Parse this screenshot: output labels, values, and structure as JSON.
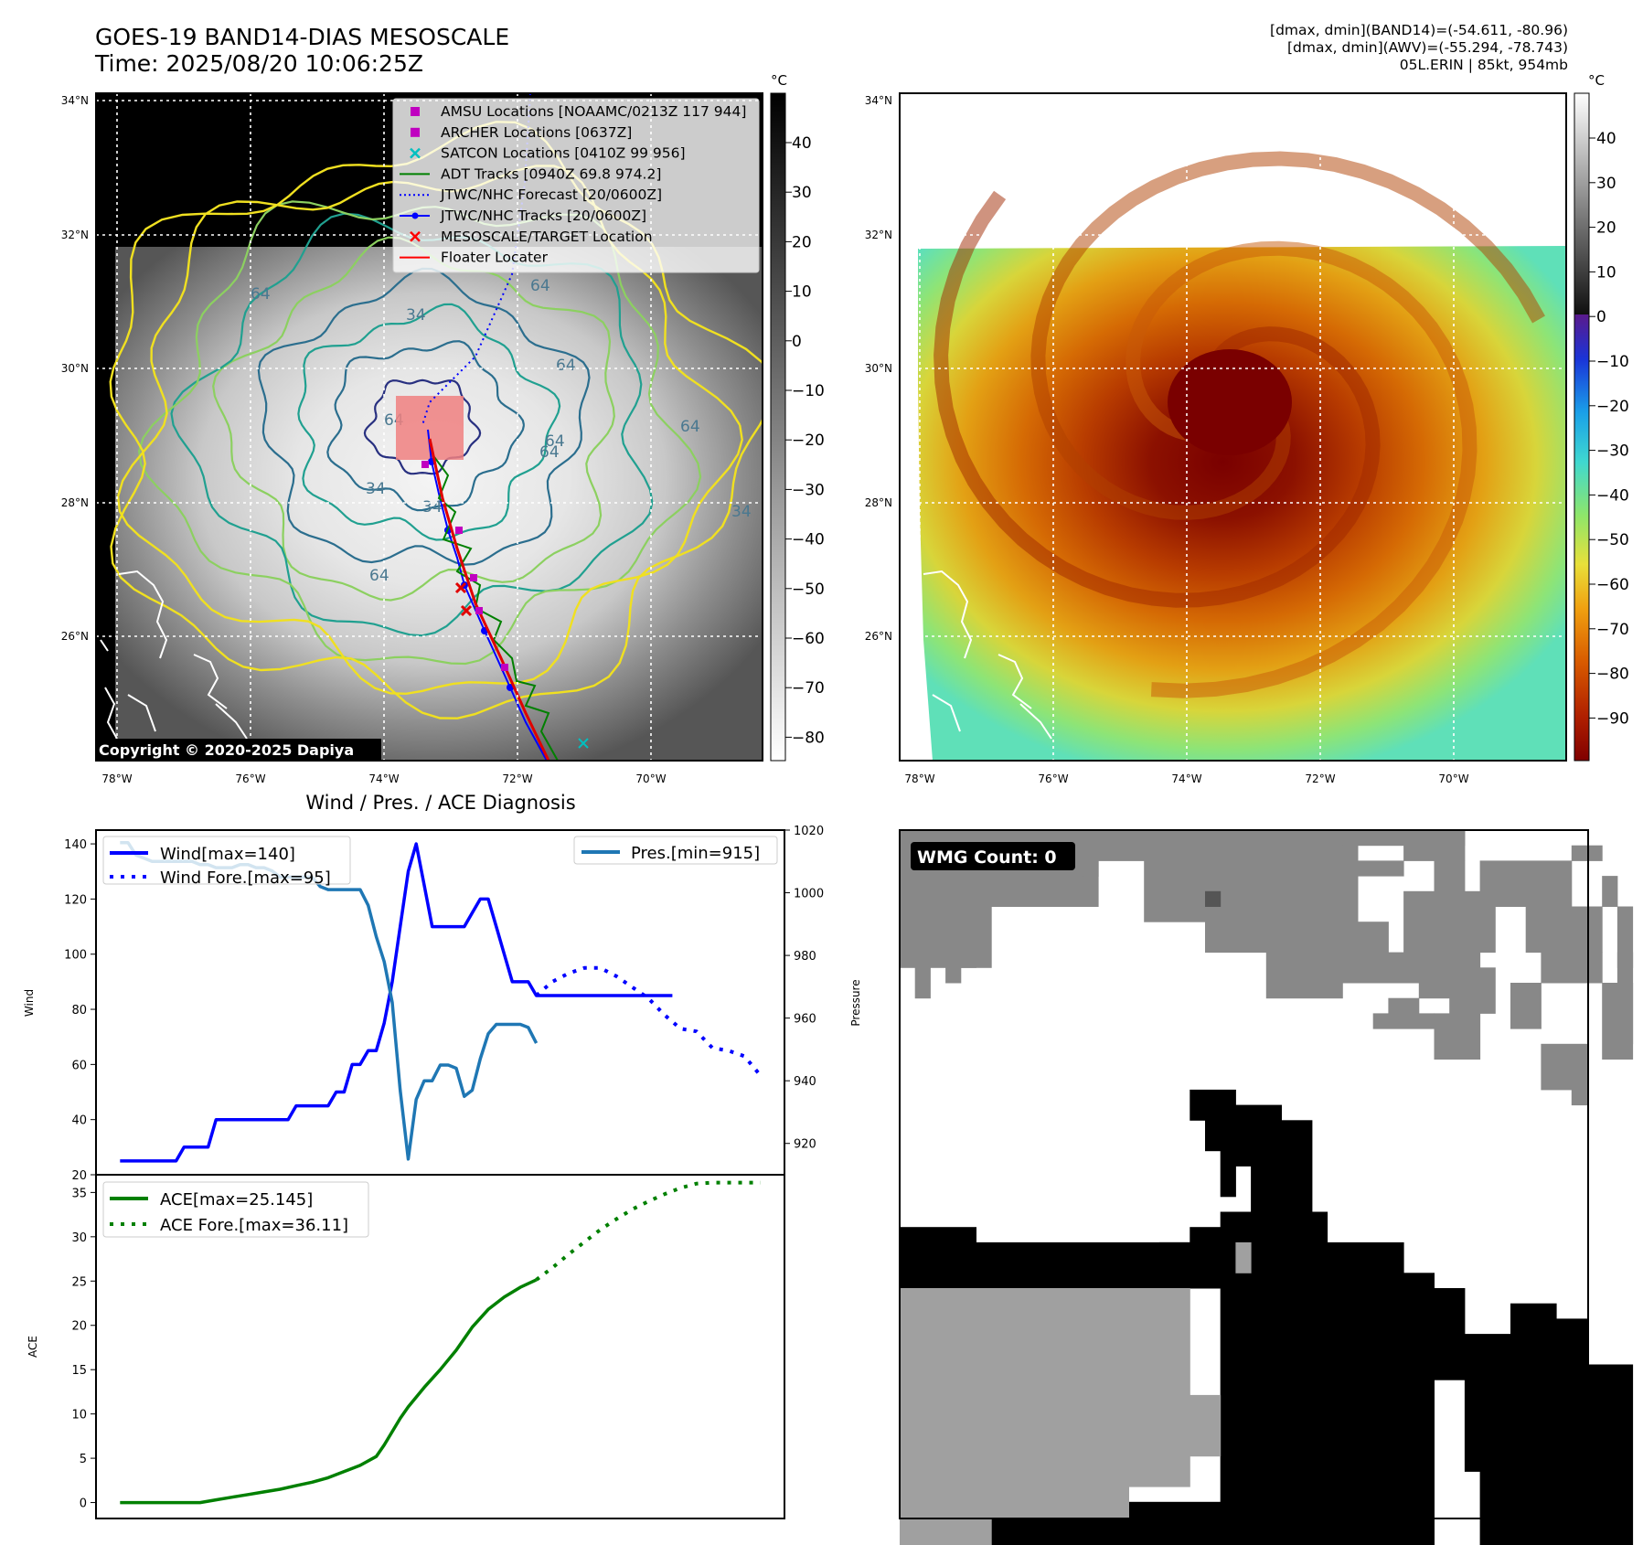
{
  "header": {
    "title": "GOES-19 BAND14-DIAS MESOSCALE",
    "time": "Time: 2025/08/20 10:06:25Z",
    "dmax_band14": "[dmax, dmin](BAND14)=(-54.611, -80.96)",
    "dmax_awv": "[dmax, dmin](AWV)=(-55.294, -78.743)",
    "storm": "05L.ERIN | 85kt, 954mb"
  },
  "maps": {
    "lat_labels": [
      "34°N",
      "32°N",
      "30°N",
      "28°N",
      "26°N"
    ],
    "lon_labels": [
      "78°W",
      "76°W",
      "74°W",
      "72°W",
      "70°W"
    ],
    "copyright": "Copyright © 2020-2025 Dapiya",
    "contour_labels": [
      "64",
      "64",
      "64",
      "64",
      "64",
      "64",
      "34",
      "34",
      "34",
      "34",
      "64",
      "64"
    ],
    "legend": [
      {
        "label": "AMSU Locations [NOAAMC/0213Z 117 944]",
        "marker": "square",
        "color": "#c000c0"
      },
      {
        "label": "ARCHER Locations [0637Z]",
        "marker": "square",
        "color": "#c000c0"
      },
      {
        "label": "SATCON Locations [0410Z 99 956]",
        "marker": "x",
        "color": "#00c0c0"
      },
      {
        "label": "ADT Tracks [0940Z 69.8 974.2]",
        "marker": "line",
        "color": "#008000"
      },
      {
        "label": "JTWC/NHC Forecast [20/0600Z]",
        "marker": "dotted",
        "color": "#0000ff"
      },
      {
        "label": "JTWC/NHC Tracks [20/0600Z]",
        "marker": "line-dot",
        "color": "#0000ff"
      },
      {
        "label": "MESOSCALE/TARGET Location",
        "marker": "x",
        "color": "#ff0000"
      },
      {
        "label": "Floater Locater",
        "marker": "line",
        "color": "#ff0000"
      }
    ]
  },
  "colorbars": {
    "unit": "°C",
    "band14_ticks": [
      "40",
      "30",
      "20",
      "10",
      "0",
      "−10",
      "−20",
      "−30",
      "−40",
      "−50",
      "−60",
      "−70",
      "−80"
    ],
    "awv_ticks": [
      "40",
      "30",
      "20",
      "10",
      "0",
      "−10",
      "−20",
      "−30",
      "−40",
      "−50",
      "−60",
      "−70",
      "−80",
      "−90"
    ]
  },
  "wmg": {
    "label": "WMG Count: 0"
  },
  "chart_data": [
    {
      "type": "line",
      "title": "Wind / Pres. / ACE Diagnosis",
      "ylabel": "Wind",
      "y2label": "Pressure",
      "ylim": [
        20,
        145
      ],
      "y2lim": [
        910,
        1020
      ],
      "y_ticks": [
        20,
        40,
        60,
        80,
        100,
        120,
        140
      ],
      "y2_ticks": [
        920,
        940,
        960,
        980,
        1000,
        1020
      ],
      "series": [
        {
          "name": "Wind[max=140]",
          "color": "#0000ff",
          "style": "solid",
          "axis": "left",
          "x": [
            0,
            1,
            2,
            3,
            4,
            5,
            6,
            7,
            8,
            9,
            10,
            11,
            12,
            13,
            14,
            15,
            16,
            17,
            18,
            19,
            20,
            21,
            22,
            23,
            24,
            25,
            26,
            27,
            28,
            29,
            30,
            31,
            32,
            33,
            34,
            35,
            36,
            37,
            38,
            39,
            40,
            41,
            42,
            43,
            44,
            45,
            46,
            47,
            48,
            49,
            50,
            51,
            52,
            53,
            54,
            55,
            56,
            57,
            58,
            59,
            60,
            61,
            62,
            63,
            64,
            65,
            66,
            67,
            68,
            69
          ],
          "values": [
            25,
            25,
            25,
            25,
            25,
            25,
            25,
            25,
            30,
            30,
            30,
            30,
            40,
            40,
            40,
            40,
            40,
            40,
            40,
            40,
            40,
            40,
            45,
            45,
            45,
            45,
            45,
            50,
            50,
            60,
            60,
            65,
            65,
            75,
            90,
            110,
            130,
            140,
            125,
            110,
            110,
            110,
            110,
            110,
            115,
            120,
            120,
            110,
            100,
            90,
            90,
            90,
            85,
            85,
            85,
            85,
            85,
            85,
            85,
            85,
            85,
            85,
            85,
            85,
            85,
            85,
            85,
            85,
            85,
            85
          ]
        },
        {
          "name": "Wind Fore.[max=95]",
          "color": "#0000ff",
          "style": "dotted",
          "axis": "left",
          "x": [
            52,
            54,
            56,
            58,
            60,
            62,
            64,
            66,
            68,
            70,
            72,
            74,
            76,
            78,
            80
          ],
          "values": [
            85,
            90,
            93,
            95,
            95,
            92,
            88,
            84,
            78,
            73,
            72,
            66,
            65,
            63,
            56
          ]
        },
        {
          "name": "Pres.[min=915]",
          "color": "#1f77b4",
          "style": "solid",
          "axis": "right",
          "x": [
            0,
            1,
            2,
            3,
            4,
            5,
            6,
            7,
            8,
            9,
            10,
            11,
            12,
            13,
            14,
            15,
            16,
            17,
            18,
            19,
            20,
            21,
            22,
            23,
            24,
            25,
            26,
            27,
            28,
            29,
            30,
            31,
            32,
            33,
            34,
            35,
            36,
            37,
            38,
            39,
            40,
            41,
            42,
            43,
            44,
            45,
            46,
            47,
            48,
            49,
            50,
            51,
            52
          ],
          "values": [
            1016,
            1016,
            1012,
            1011,
            1010,
            1010,
            1010,
            1010,
            1010,
            1010,
            1009,
            1009,
            1008,
            1008,
            1008,
            1009,
            1009,
            1008,
            1008,
            1007,
            1005,
            1005,
            1005,
            1005,
            1005,
            1002,
            1001,
            1001,
            1001,
            1001,
            1001,
            996,
            986,
            978,
            965,
            937,
            915,
            934,
            940,
            940,
            945,
            945,
            944,
            935,
            937,
            947,
            955,
            958,
            958,
            958,
            958,
            957,
            952
          ]
        },
        {
          "name": "ACE[max=25.145]",
          "color": "#008000",
          "style": "solid",
          "axis": "ace",
          "x": [
            0,
            2,
            4,
            6,
            8,
            10,
            12,
            14,
            16,
            18,
            20,
            22,
            24,
            26,
            28,
            30,
            32,
            33,
            34,
            35,
            36,
            38,
            40,
            42,
            44,
            46,
            48,
            50,
            52
          ],
          "values": [
            0,
            0,
            0,
            0,
            0,
            0,
            0.3,
            0.6,
            0.9,
            1.2,
            1.5,
            1.9,
            2.3,
            2.8,
            3.5,
            4.2,
            5.2,
            6.5,
            8,
            9.5,
            10.8,
            13,
            15,
            17.2,
            19.8,
            21.8,
            23.2,
            24.3,
            25.145
          ]
        },
        {
          "name": "ACE Fore.[max=36.11]",
          "color": "#008000",
          "style": "dotted",
          "axis": "ace",
          "x": [
            52,
            54,
            56,
            58,
            60,
            62,
            64,
            66,
            68,
            70,
            72,
            74,
            76,
            78,
            80
          ],
          "values": [
            25.145,
            26.5,
            28,
            29.4,
            30.8,
            32,
            33.1,
            34,
            34.8,
            35.5,
            36.0,
            36.11,
            36.11,
            36.11,
            36.11
          ]
        }
      ],
      "ace_ylabel": "ACE",
      "ace_ylim": [
        -1.8,
        37
      ],
      "ace_ticks": [
        0,
        5,
        10,
        15,
        20,
        25,
        30,
        35
      ],
      "xlim": [
        -3,
        83
      ],
      "legend": "upper-left / upper-right"
    }
  ]
}
